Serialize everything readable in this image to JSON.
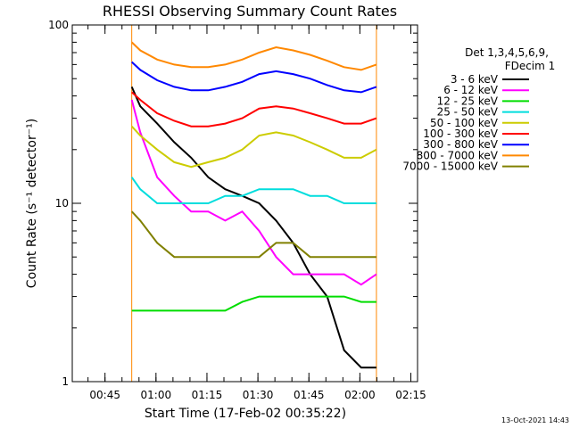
{
  "chart_data": {
    "type": "line",
    "title": "RHESSI Observing Summary Count Rates",
    "xlabel": "Start Time (17-Feb-02 00:35:22)",
    "ylabel": "Count Rate (s⁻¹ detector⁻¹)",
    "y_scale": "log",
    "ylim": [
      1,
      100
    ],
    "xlim_minutes_after_0035_22": [
      0,
      101.6
    ],
    "y_ticks": [
      "1",
      "10",
      "100"
    ],
    "x_ticks": [
      "00:45",
      "01:00",
      "01:15",
      "01:30",
      "01:45",
      "02:00",
      "02:15"
    ],
    "legend_header": [
      "Det 1,3,4,5,6,9,",
      "FDecim 1"
    ],
    "legend_position": "right",
    "footer_date": "13-Oct-2021 14:43",
    "data_gap_start_minutes": 17.5,
    "data_gap_end_minutes": 89.5,
    "series": [
      {
        "name": "3 - 6 keV",
        "color": "#000000",
        "x": [
          17.5,
          20,
          25,
          30,
          35,
          40,
          45,
          50,
          55,
          60,
          65,
          70,
          75,
          80,
          85,
          89.5
        ],
        "values": [
          45,
          35,
          28,
          22,
          18,
          14,
          12,
          11,
          10,
          8,
          6,
          4,
          3,
          1.5,
          1.2,
          1.2
        ]
      },
      {
        "name": "6 - 12 keV",
        "color": "#ff00ff",
        "x": [
          17.5,
          20,
          25,
          30,
          35,
          40,
          45,
          50,
          55,
          60,
          65,
          70,
          75,
          80,
          85,
          89.5
        ],
        "values": [
          38,
          25,
          14,
          11,
          9,
          9,
          8,
          9,
          7,
          5,
          4,
          4,
          4,
          4,
          3.5,
          4
        ]
      },
      {
        "name": "12 - 25 keV",
        "color": "#00dd00",
        "x": [
          17.5,
          20,
          25,
          30,
          35,
          40,
          45,
          50,
          55,
          60,
          65,
          70,
          75,
          80,
          85,
          89.5
        ],
        "values": [
          2.5,
          2.5,
          2.5,
          2.5,
          2.5,
          2.5,
          2.5,
          2.8,
          3,
          3,
          3,
          3,
          3,
          3,
          2.8,
          2.8
        ]
      },
      {
        "name": "25 - 50 keV",
        "color": "#00dddd",
        "x": [
          17.5,
          20,
          25,
          30,
          35,
          40,
          45,
          50,
          55,
          60,
          65,
          70,
          75,
          80,
          85,
          89.5
        ],
        "values": [
          14,
          12,
          10,
          10,
          10,
          10,
          11,
          11,
          12,
          12,
          12,
          11,
          11,
          10,
          10,
          10
        ]
      },
      {
        "name": "50 - 100 keV",
        "color": "#cccc00",
        "x": [
          17.5,
          20,
          25,
          30,
          35,
          40,
          45,
          50,
          55,
          60,
          65,
          70,
          75,
          80,
          85,
          89.5
        ],
        "values": [
          27,
          24,
          20,
          17,
          16,
          17,
          18,
          20,
          24,
          25,
          24,
          22,
          20,
          18,
          18,
          20
        ]
      },
      {
        "name": "100 - 300 keV",
        "color": "#ff0000",
        "x": [
          17.5,
          20,
          25,
          30,
          35,
          40,
          45,
          50,
          55,
          60,
          65,
          70,
          75,
          80,
          85,
          89.5
        ],
        "values": [
          42,
          38,
          32,
          29,
          27,
          27,
          28,
          30,
          34,
          35,
          34,
          32,
          30,
          28,
          28,
          30
        ]
      },
      {
        "name": "300 - 800 keV",
        "color": "#0000ff",
        "x": [
          17.5,
          20,
          25,
          30,
          35,
          40,
          45,
          50,
          55,
          60,
          65,
          70,
          75,
          80,
          85,
          89.5
        ],
        "values": [
          62,
          56,
          49,
          45,
          43,
          43,
          45,
          48,
          53,
          55,
          53,
          50,
          46,
          43,
          42,
          45
        ]
      },
      {
        "name": "800 - 7000 keV",
        "color": "#ff8800",
        "x": [
          17.5,
          20,
          25,
          30,
          35,
          40,
          45,
          50,
          55,
          60,
          65,
          70,
          75,
          80,
          85,
          89.5
        ],
        "values": [
          80,
          72,
          64,
          60,
          58,
          58,
          60,
          64,
          70,
          75,
          72,
          68,
          63,
          58,
          56,
          60
        ]
      },
      {
        "name": "7000 - 15000 keV",
        "color": "#808000",
        "x": [
          17.5,
          20,
          25,
          30,
          35,
          40,
          45,
          50,
          55,
          60,
          65,
          70,
          75,
          80,
          85,
          89.5
        ],
        "values": [
          9,
          8,
          6,
          5,
          5,
          5,
          5,
          5,
          5,
          6,
          6,
          5,
          5,
          5,
          5,
          5
        ]
      }
    ]
  }
}
